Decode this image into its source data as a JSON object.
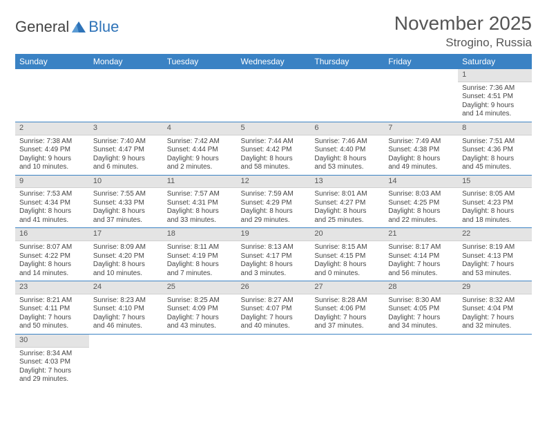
{
  "logo": {
    "text1": "General",
    "text2": "Blue"
  },
  "title": "November 2025",
  "location": "Strogino, Russia",
  "weekdays": [
    "Sunday",
    "Monday",
    "Tuesday",
    "Wednesday",
    "Thursday",
    "Friday",
    "Saturday"
  ],
  "colors": {
    "header_bg": "#3a82c4",
    "header_fg": "#ffffff",
    "daynum_bg": "#e4e4e4",
    "row_border": "#3a82c4",
    "logo_blue": "#2e73b8"
  },
  "weeks": [
    [
      null,
      null,
      null,
      null,
      null,
      null,
      {
        "n": "1",
        "sr": "Sunrise: 7:36 AM",
        "ss": "Sunset: 4:51 PM",
        "d1": "Daylight: 9 hours",
        "d2": "and 14 minutes."
      }
    ],
    [
      {
        "n": "2",
        "sr": "Sunrise: 7:38 AM",
        "ss": "Sunset: 4:49 PM",
        "d1": "Daylight: 9 hours",
        "d2": "and 10 minutes."
      },
      {
        "n": "3",
        "sr": "Sunrise: 7:40 AM",
        "ss": "Sunset: 4:47 PM",
        "d1": "Daylight: 9 hours",
        "d2": "and 6 minutes."
      },
      {
        "n": "4",
        "sr": "Sunrise: 7:42 AM",
        "ss": "Sunset: 4:44 PM",
        "d1": "Daylight: 9 hours",
        "d2": "and 2 minutes."
      },
      {
        "n": "5",
        "sr": "Sunrise: 7:44 AM",
        "ss": "Sunset: 4:42 PM",
        "d1": "Daylight: 8 hours",
        "d2": "and 58 minutes."
      },
      {
        "n": "6",
        "sr": "Sunrise: 7:46 AM",
        "ss": "Sunset: 4:40 PM",
        "d1": "Daylight: 8 hours",
        "d2": "and 53 minutes."
      },
      {
        "n": "7",
        "sr": "Sunrise: 7:49 AM",
        "ss": "Sunset: 4:38 PM",
        "d1": "Daylight: 8 hours",
        "d2": "and 49 minutes."
      },
      {
        "n": "8",
        "sr": "Sunrise: 7:51 AM",
        "ss": "Sunset: 4:36 PM",
        "d1": "Daylight: 8 hours",
        "d2": "and 45 minutes."
      }
    ],
    [
      {
        "n": "9",
        "sr": "Sunrise: 7:53 AM",
        "ss": "Sunset: 4:34 PM",
        "d1": "Daylight: 8 hours",
        "d2": "and 41 minutes."
      },
      {
        "n": "10",
        "sr": "Sunrise: 7:55 AM",
        "ss": "Sunset: 4:33 PM",
        "d1": "Daylight: 8 hours",
        "d2": "and 37 minutes."
      },
      {
        "n": "11",
        "sr": "Sunrise: 7:57 AM",
        "ss": "Sunset: 4:31 PM",
        "d1": "Daylight: 8 hours",
        "d2": "and 33 minutes."
      },
      {
        "n": "12",
        "sr": "Sunrise: 7:59 AM",
        "ss": "Sunset: 4:29 PM",
        "d1": "Daylight: 8 hours",
        "d2": "and 29 minutes."
      },
      {
        "n": "13",
        "sr": "Sunrise: 8:01 AM",
        "ss": "Sunset: 4:27 PM",
        "d1": "Daylight: 8 hours",
        "d2": "and 25 minutes."
      },
      {
        "n": "14",
        "sr": "Sunrise: 8:03 AM",
        "ss": "Sunset: 4:25 PM",
        "d1": "Daylight: 8 hours",
        "d2": "and 22 minutes."
      },
      {
        "n": "15",
        "sr": "Sunrise: 8:05 AM",
        "ss": "Sunset: 4:23 PM",
        "d1": "Daylight: 8 hours",
        "d2": "and 18 minutes."
      }
    ],
    [
      {
        "n": "16",
        "sr": "Sunrise: 8:07 AM",
        "ss": "Sunset: 4:22 PM",
        "d1": "Daylight: 8 hours",
        "d2": "and 14 minutes."
      },
      {
        "n": "17",
        "sr": "Sunrise: 8:09 AM",
        "ss": "Sunset: 4:20 PM",
        "d1": "Daylight: 8 hours",
        "d2": "and 10 minutes."
      },
      {
        "n": "18",
        "sr": "Sunrise: 8:11 AM",
        "ss": "Sunset: 4:19 PM",
        "d1": "Daylight: 8 hours",
        "d2": "and 7 minutes."
      },
      {
        "n": "19",
        "sr": "Sunrise: 8:13 AM",
        "ss": "Sunset: 4:17 PM",
        "d1": "Daylight: 8 hours",
        "d2": "and 3 minutes."
      },
      {
        "n": "20",
        "sr": "Sunrise: 8:15 AM",
        "ss": "Sunset: 4:15 PM",
        "d1": "Daylight: 8 hours",
        "d2": "and 0 minutes."
      },
      {
        "n": "21",
        "sr": "Sunrise: 8:17 AM",
        "ss": "Sunset: 4:14 PM",
        "d1": "Daylight: 7 hours",
        "d2": "and 56 minutes."
      },
      {
        "n": "22",
        "sr": "Sunrise: 8:19 AM",
        "ss": "Sunset: 4:13 PM",
        "d1": "Daylight: 7 hours",
        "d2": "and 53 minutes."
      }
    ],
    [
      {
        "n": "23",
        "sr": "Sunrise: 8:21 AM",
        "ss": "Sunset: 4:11 PM",
        "d1": "Daylight: 7 hours",
        "d2": "and 50 minutes."
      },
      {
        "n": "24",
        "sr": "Sunrise: 8:23 AM",
        "ss": "Sunset: 4:10 PM",
        "d1": "Daylight: 7 hours",
        "d2": "and 46 minutes."
      },
      {
        "n": "25",
        "sr": "Sunrise: 8:25 AM",
        "ss": "Sunset: 4:09 PM",
        "d1": "Daylight: 7 hours",
        "d2": "and 43 minutes."
      },
      {
        "n": "26",
        "sr": "Sunrise: 8:27 AM",
        "ss": "Sunset: 4:07 PM",
        "d1": "Daylight: 7 hours",
        "d2": "and 40 minutes."
      },
      {
        "n": "27",
        "sr": "Sunrise: 8:28 AM",
        "ss": "Sunset: 4:06 PM",
        "d1": "Daylight: 7 hours",
        "d2": "and 37 minutes."
      },
      {
        "n": "28",
        "sr": "Sunrise: 8:30 AM",
        "ss": "Sunset: 4:05 PM",
        "d1": "Daylight: 7 hours",
        "d2": "and 34 minutes."
      },
      {
        "n": "29",
        "sr": "Sunrise: 8:32 AM",
        "ss": "Sunset: 4:04 PM",
        "d1": "Daylight: 7 hours",
        "d2": "and 32 minutes."
      }
    ],
    [
      {
        "n": "30",
        "sr": "Sunrise: 8:34 AM",
        "ss": "Sunset: 4:03 PM",
        "d1": "Daylight: 7 hours",
        "d2": "and 29 minutes."
      },
      null,
      null,
      null,
      null,
      null,
      null
    ]
  ]
}
